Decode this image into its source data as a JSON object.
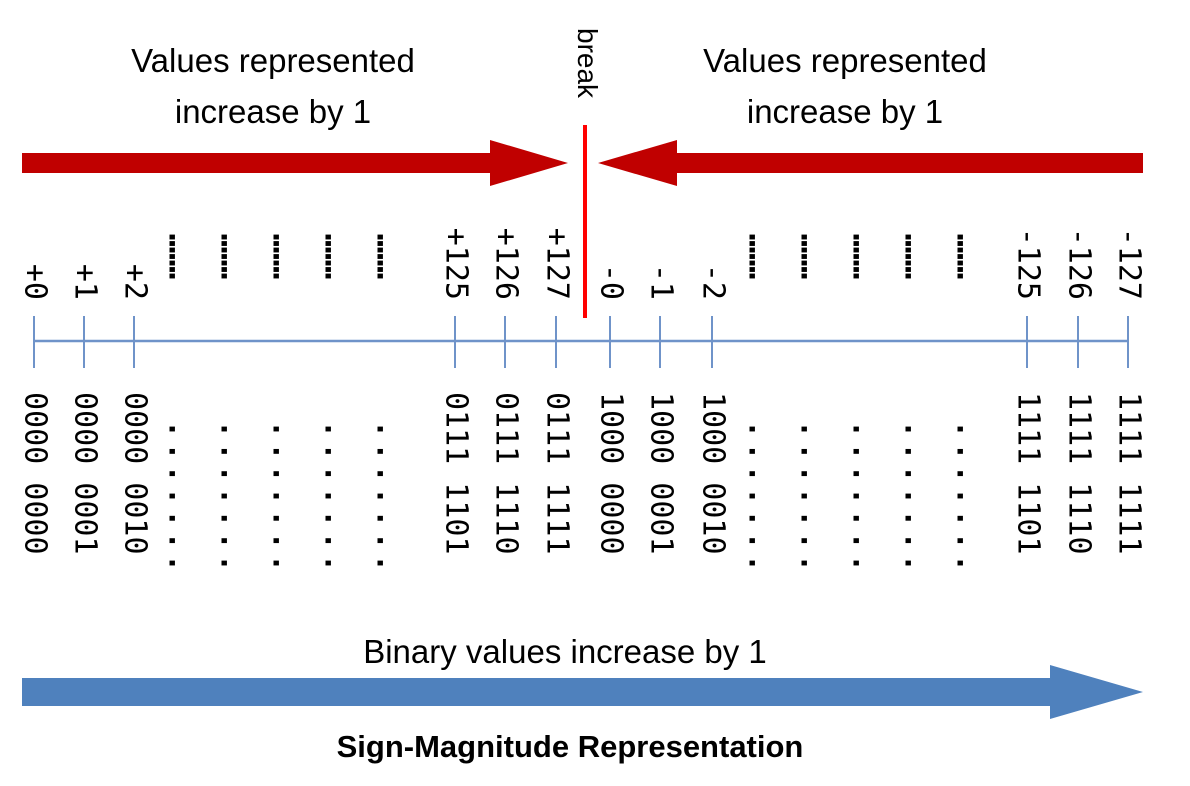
{
  "top_left_label": {
    "line1": "Values represented",
    "line2": "increase by 1"
  },
  "top_right_label": {
    "line1": "Values represented",
    "line2": "increase by 1"
  },
  "break_label": "break",
  "bottom_label": "Binary values increase by 1",
  "title": "Sign-Magnitude Representation",
  "ellipsis": ". . . . . . .",
  "colors": {
    "red_arrow": "#c00000",
    "break_line": "#ff0000",
    "number_line": "#6f93c9",
    "blue_arrow": "#4f81bd",
    "text": "#000000"
  },
  "left_ticks": [
    {
      "value": "+0",
      "binary": "0000 0000"
    },
    {
      "value": "+1",
      "binary": "0000 0001"
    },
    {
      "value": "+2",
      "binary": "0000 0010"
    },
    {
      "value": "+125",
      "binary": "0111 1101"
    },
    {
      "value": "+126",
      "binary": "0111 1110"
    },
    {
      "value": "+127",
      "binary": "0111 1111"
    }
  ],
  "right_ticks": [
    {
      "value": "-0",
      "binary": "1000 0000"
    },
    {
      "value": "-1",
      "binary": "1000 0001"
    },
    {
      "value": "-2",
      "binary": "1000 0010"
    },
    {
      "value": "-125",
      "binary": "1111 1101"
    },
    {
      "value": "-126",
      "binary": "1111 1110"
    },
    {
      "value": "-127",
      "binary": "1111 1111"
    }
  ]
}
